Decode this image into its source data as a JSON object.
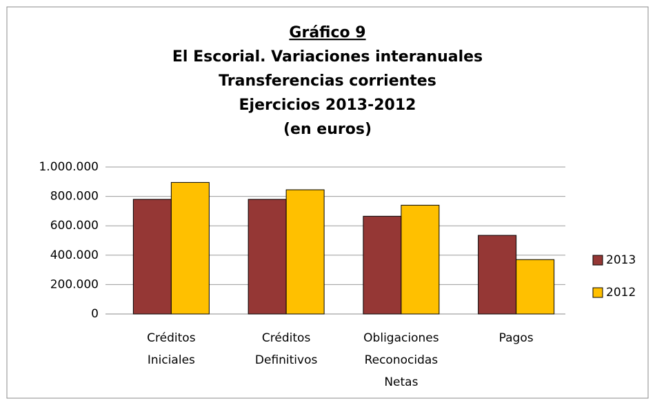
{
  "chart_data": {
    "type": "bar",
    "title": [
      "Gráfico 9",
      "El Escorial. Variaciones interanuales",
      "Transferencias corrientes",
      "Ejercicios 2013-2012",
      "(en euros)"
    ],
    "categories": [
      "Créditos Iniciales",
      "Créditos Definitivos",
      "Obligaciones Reconocidas Netas",
      "Pagos"
    ],
    "series": [
      {
        "name": "2013",
        "color": "#953735",
        "values": [
          780000,
          780000,
          665000,
          535000
        ]
      },
      {
        "name": "2012",
        "color": "#ffc000",
        "values": [
          895000,
          845000,
          740000,
          370000
        ]
      }
    ],
    "ylim": [
      0,
      1000000
    ],
    "yticks": [
      0,
      {
        "value": 200000,
        "label": "200.000"
      },
      {
        "value": 400000,
        "label": "400.000"
      },
      {
        "value": 600000,
        "label": "600.000"
      },
      {
        "value": 800000,
        "label": "800.000"
      },
      {
        "value": 1000000,
        "label": "1.000.000"
      }
    ],
    "grid": true,
    "legend": "right"
  }
}
